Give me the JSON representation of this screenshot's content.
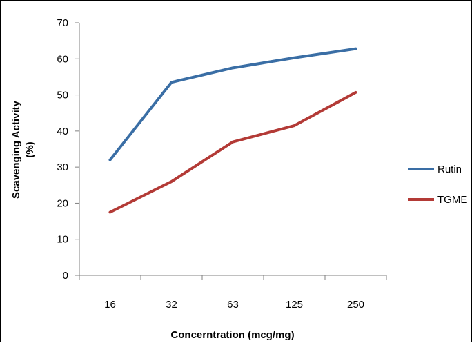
{
  "chart_data": {
    "type": "line",
    "categories": [
      "16",
      "32",
      "63",
      "125",
      "250"
    ],
    "series": [
      {
        "name": "Rutin",
        "values": [
          32,
          53.5,
          57.5,
          60.3,
          62.8
        ],
        "color": "#3a6ea5"
      },
      {
        "name": "TGME",
        "values": [
          17.5,
          26,
          37,
          41.5,
          50.7
        ],
        "color": "#b33a36"
      }
    ],
    "xlabel": "Concerntration (mcg/mg)",
    "ylabel_lines": [
      "Scavenging Activity",
      "(%)"
    ],
    "ylim": [
      0,
      70
    ],
    "yticks": [
      0,
      10,
      20,
      30,
      40,
      50,
      60,
      70
    ],
    "grid": false,
    "legend_position": "right"
  }
}
